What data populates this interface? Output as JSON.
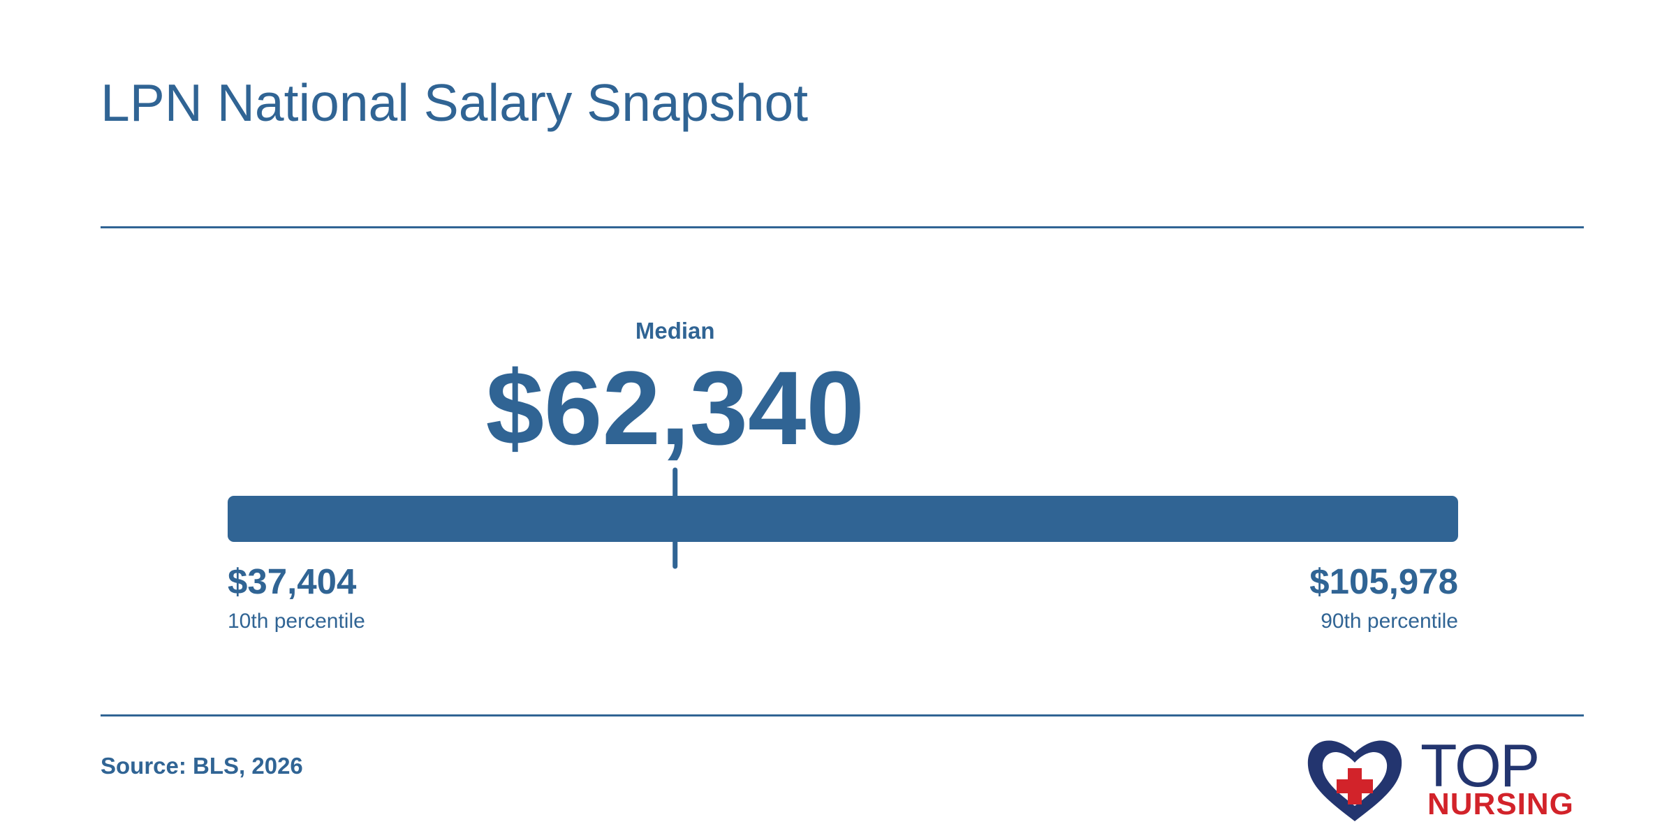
{
  "title": "LPN National Salary Snapshot",
  "source": "Source: BLS, 2026",
  "logo": {
    "line1": "TOP",
    "line2": "NURSING",
    "navy": "#23356f",
    "red": "#d2232a"
  },
  "colors": {
    "primary": "#306494"
  },
  "chart_data": {
    "type": "bar",
    "min": {
      "value": 37404,
      "value_label": "$37,404",
      "label": "10th percentile"
    },
    "median": {
      "value": 62340,
      "value_label": "$62,340",
      "label": "Median"
    },
    "max": {
      "value": 105978,
      "value_label": "$105,978",
      "label": "90th percentile"
    }
  }
}
